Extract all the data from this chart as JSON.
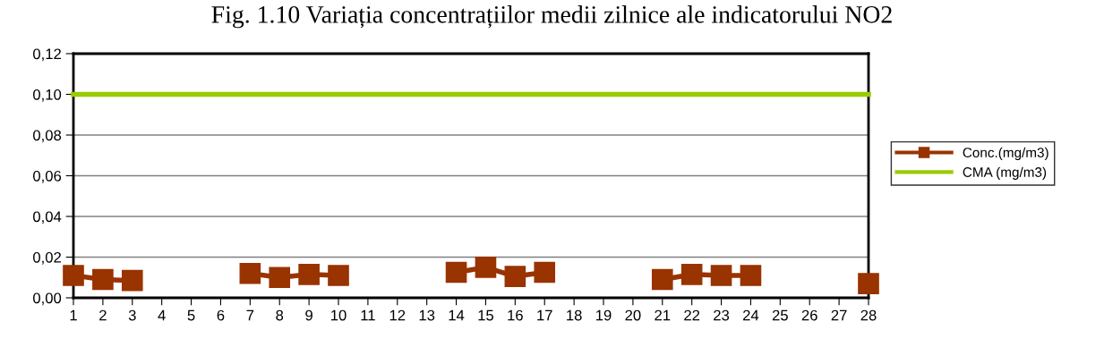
{
  "chart_data": {
    "type": "line",
    "title": "Fig. 1.10 Variația concentrațiilor medii zilnice ale indicatorului NO2",
    "categories": [
      "1",
      "2",
      "3",
      "4",
      "5",
      "6",
      "7",
      "8",
      "9",
      "10",
      "11",
      "12",
      "13",
      "14",
      "15",
      "16",
      "17",
      "18",
      "19",
      "20",
      "21",
      "22",
      "23",
      "24",
      "25",
      "26",
      "27",
      "28"
    ],
    "series": [
      {
        "name": "Conc.(mg/m3)",
        "color": "#993300",
        "marker": "square",
        "values": [
          0.011,
          0.009,
          0.0085,
          null,
          null,
          null,
          0.012,
          0.01,
          0.0115,
          0.011,
          null,
          null,
          null,
          0.0125,
          0.015,
          0.0105,
          0.0125,
          null,
          null,
          null,
          0.009,
          0.0115,
          0.011,
          0.011,
          null,
          null,
          null,
          0.007
        ]
      },
      {
        "name": "CMA (mg/m3)",
        "color": "#99cc00",
        "marker": "none",
        "values": [
          0.1,
          0.1,
          0.1,
          0.1,
          0.1,
          0.1,
          0.1,
          0.1,
          0.1,
          0.1,
          0.1,
          0.1,
          0.1,
          0.1,
          0.1,
          0.1,
          0.1,
          0.1,
          0.1,
          0.1,
          0.1,
          0.1,
          0.1,
          0.1,
          0.1,
          0.1,
          0.1,
          0.1
        ]
      }
    ],
    "ylim": [
      0,
      0.12
    ],
    "yticks": [
      {
        "value": 0,
        "label": "0,00"
      },
      {
        "value": 0.02,
        "label": "0,02"
      },
      {
        "value": 0.04,
        "label": "0,04"
      },
      {
        "value": 0.06,
        "label": "0,06"
      },
      {
        "value": 0.08,
        "label": "0,08"
      },
      {
        "value": 0.1,
        "label": "0,10"
      },
      {
        "value": 0.12,
        "label": "0,12"
      }
    ],
    "grid": "y",
    "legend": "right",
    "line_style": "solid"
  }
}
